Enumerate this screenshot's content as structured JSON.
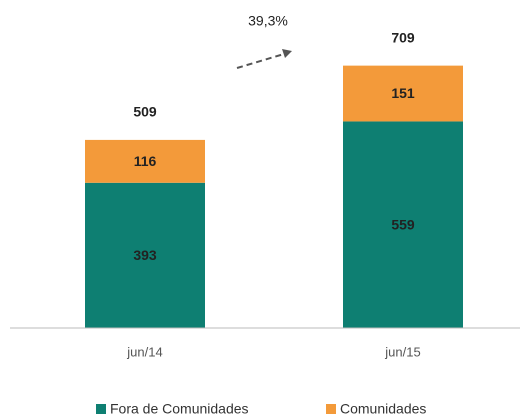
{
  "chart_data": {
    "type": "stacked_bar",
    "categories": [
      "jun/14",
      "jun/15"
    ],
    "series": [
      {
        "name": "Fora de Comunidades",
        "color": "#0e7f72",
        "values": [
          393,
          559
        ]
      },
      {
        "name": "Comunidades",
        "color": "#f39a3a",
        "values": [
          116,
          151
        ]
      }
    ],
    "totals": [
      509,
      709
    ],
    "annotation": "39,3%"
  }
}
